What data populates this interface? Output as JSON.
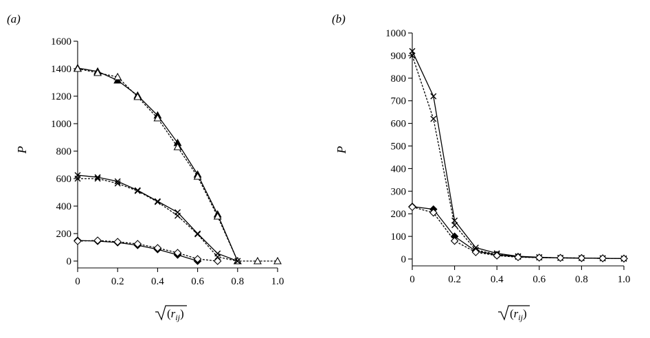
{
  "chart_data": [
    {
      "type": "line",
      "panel_label": "(a)",
      "xlabel": "√(r_ij)",
      "ylabel": "P",
      "xlim": [
        0,
        1.0
      ],
      "ylim": [
        0,
        1600
      ],
      "x_ticks": [
        "0",
        "0.2",
        "0.4",
        "0.6",
        "0.8",
        "1.0"
      ],
      "y_ticks": [
        "0",
        "200",
        "400",
        "600",
        "800",
        "1000",
        "1200",
        "1400",
        "1600"
      ],
      "grid": false,
      "series": [
        {
          "marker": "triangle-filled",
          "style": "solid",
          "color": "#000000",
          "x": [
            0,
            0.1,
            0.2,
            0.3,
            0.4,
            0.5,
            0.6,
            0.7,
            0.8
          ],
          "y": [
            1405,
            1380,
            1315,
            1205,
            1060,
            860,
            630,
            340,
            0
          ]
        },
        {
          "marker": "triangle-open",
          "style": "dashed",
          "color": "#000000",
          "x": [
            0,
            0.1,
            0.2,
            0.3,
            0.4,
            0.5,
            0.6,
            0.7,
            0.8,
            0.9,
            1.0
          ],
          "y": [
            1400,
            1370,
            1340,
            1195,
            1040,
            830,
            615,
            325,
            0,
            0,
            0
          ]
        },
        {
          "marker": "x",
          "style": "solid",
          "color": "#000000",
          "x": [
            0,
            0.1,
            0.2,
            0.3,
            0.4,
            0.5,
            0.6,
            0.7,
            0.8
          ],
          "y": [
            625,
            610,
            580,
            515,
            435,
            355,
            200,
            55,
            0
          ]
        },
        {
          "marker": "x",
          "style": "dashed",
          "color": "#000000",
          "x": [
            0,
            0.1,
            0.2,
            0.3,
            0.4,
            0.5,
            0.6,
            0.7,
            0.8
          ],
          "y": [
            600,
            600,
            565,
            510,
            430,
            330,
            195,
            30,
            0
          ]
        },
        {
          "marker": "diamond-filled",
          "style": "solid",
          "color": "#000000",
          "x": [
            0,
            0.1,
            0.2,
            0.3,
            0.4,
            0.5,
            0.6
          ],
          "y": [
            150,
            145,
            135,
            115,
            85,
            45,
            0
          ]
        },
        {
          "marker": "diamond-open",
          "style": "dashed",
          "color": "#000000",
          "x": [
            0,
            0.1,
            0.2,
            0.3,
            0.4,
            0.5,
            0.6,
            0.7
          ],
          "y": [
            145,
            150,
            140,
            125,
            95,
            60,
            15,
            0
          ]
        }
      ]
    },
    {
      "type": "line",
      "panel_label": "(b)",
      "xlabel": "√(r_ij)",
      "ylabel": "P",
      "xlim": [
        0,
        1.0
      ],
      "ylim": [
        0,
        1000
      ],
      "x_ticks": [
        "0",
        "0.2",
        "0.4",
        "0.6",
        "0.8",
        "1.0"
      ],
      "y_ticks": [
        "0",
        "100",
        "200",
        "300",
        "400",
        "500",
        "600",
        "700",
        "800",
        "900",
        "1000"
      ],
      "grid": false,
      "series": [
        {
          "marker": "x",
          "style": "solid",
          "color": "#000000",
          "x": [
            0,
            0.1,
            0.2,
            0.3,
            0.4,
            0.5,
            0.6,
            0.7,
            0.8,
            0.9,
            1.0
          ],
          "y": [
            920,
            720,
            170,
            50,
            25,
            12,
            8,
            5,
            4,
            3,
            2
          ]
        },
        {
          "marker": "x",
          "style": "dashed",
          "color": "#000000",
          "x": [
            0,
            0.1,
            0.2,
            0.3,
            0.4,
            0.5,
            0.6,
            0.7,
            0.8,
            0.9,
            1.0
          ],
          "y": [
            900,
            620,
            150,
            40,
            20,
            10,
            7,
            5,
            4,
            3,
            2
          ]
        },
        {
          "marker": "diamond-filled",
          "style": "solid",
          "color": "#000000",
          "x": [
            0,
            0.1,
            0.2,
            0.3,
            0.4,
            0.5,
            0.6,
            0.7,
            0.8,
            0.9,
            1.0
          ],
          "y": [
            232,
            220,
            100,
            35,
            18,
            10,
            6,
            5,
            4,
            3,
            2
          ]
        },
        {
          "marker": "diamond-open",
          "style": "dashed",
          "color": "#000000",
          "x": [
            0,
            0.1,
            0.2,
            0.3,
            0.4,
            0.5,
            0.6,
            0.7,
            0.8,
            0.9,
            1.0
          ],
          "y": [
            230,
            205,
            80,
            30,
            15,
            8,
            6,
            5,
            4,
            3,
            2
          ]
        }
      ]
    }
  ]
}
